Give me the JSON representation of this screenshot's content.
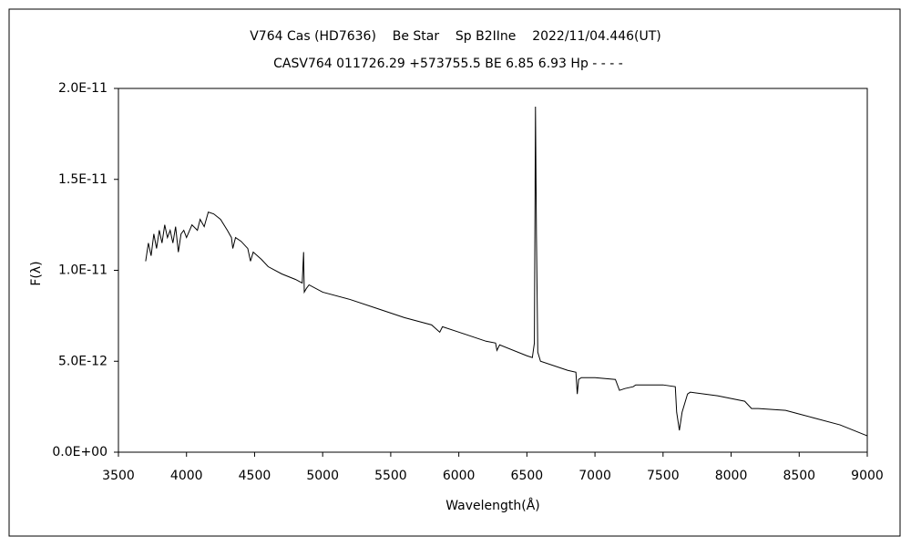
{
  "chart_data": {
    "type": "line",
    "title": "V764 Cas (HD7636)    Be Star    Sp B2IIne    2022/11/04.446(UT)",
    "subtitle": "CASV764 011726.29 +573755.5 BE 6.85 6.93 Hp - - - -",
    "x_label": "Wavelength(Å)",
    "y_label": "F(λ)",
    "color": "#000000",
    "x": [
      3700,
      3720,
      3740,
      3760,
      3780,
      3800,
      3820,
      3840,
      3860,
      3880,
      3900,
      3920,
      3940,
      3960,
      3980,
      4000,
      4040,
      4080,
      4100,
      4130,
      4160,
      4200,
      4250,
      4300,
      4330,
      4340,
      4360,
      4400,
      4450,
      4470,
      4490,
      4550,
      4600,
      4700,
      4800,
      4850,
      4860,
      4865,
      4880,
      4900,
      5000,
      5200,
      5400,
      5600,
      5800,
      5860,
      5880,
      6000,
      6200,
      6270,
      6280,
      6300,
      6500,
      6540,
      6555,
      6563,
      6570,
      6580,
      6600,
      6800,
      6860,
      6870,
      6880,
      6900,
      7000,
      7150,
      7180,
      7220,
      7280,
      7300,
      7500,
      7590,
      7600,
      7620,
      7640,
      7680,
      7700,
      7900,
      8100,
      8150,
      8200,
      8400,
      8500,
      8600,
      8800,
      9000
    ],
    "values": [
      1.05e-11,
      1.15e-11,
      1.08e-11,
      1.2e-11,
      1.12e-11,
      1.22e-11,
      1.15e-11,
      1.25e-11,
      1.18e-11,
      1.22e-11,
      1.15e-11,
      1.24e-11,
      1.1e-11,
      1.2e-11,
      1.22e-11,
      1.18e-11,
      1.25e-11,
      1.22e-11,
      1.28e-11,
      1.24e-11,
      1.32e-11,
      1.31e-11,
      1.28e-11,
      1.22e-11,
      1.18e-11,
      1.12e-11,
      1.18e-11,
      1.16e-11,
      1.12e-11,
      1.05e-11,
      1.1e-11,
      1.06e-11,
      1.02e-11,
      9.8e-12,
      9.5e-12,
      9.3e-12,
      1.1e-11,
      8.8e-12,
      9e-12,
      9.2e-12,
      8.8e-12,
      8.4e-12,
      7.9e-12,
      7.4e-12,
      7e-12,
      6.6e-12,
      6.9e-12,
      6.6e-12,
      6.1e-12,
      6e-12,
      5.6e-12,
      5.9e-12,
      5.3e-12,
      5.2e-12,
      6e-12,
      1.9e-11,
      1.2e-11,
      5.5e-12,
      5e-12,
      4.5e-12,
      4.4e-12,
      3.2e-12,
      4e-12,
      4.1e-12,
      4.1e-12,
      4e-12,
      3.4e-12,
      3.5e-12,
      3.6e-12,
      3.7e-12,
      3.7e-12,
      3.6e-12,
      2.2e-12,
      1.2e-12,
      2.2e-12,
      3.2e-12,
      3.3e-12,
      3.1e-12,
      2.8e-12,
      2.4e-12,
      2.4e-12,
      2.3e-12,
      2.1e-12,
      1.9e-12,
      1.5e-12,
      9e-13
    ],
    "xlim": [
      3500,
      9000
    ],
    "xticks": [
      3500,
      4000,
      4500,
      5000,
      5500,
      6000,
      6500,
      7000,
      7500,
      8000,
      8500,
      9000
    ],
    "ylim": [
      0,
      2e-11
    ],
    "yticks": [
      {
        "value": 0,
        "label": "0.0E+00"
      },
      {
        "value": 5e-12,
        "label": "5.0E-12"
      },
      {
        "value": 1e-11,
        "label": "1.0E-11"
      },
      {
        "value": 1.5e-11,
        "label": "1.5E-11"
      },
      {
        "value": 2e-11,
        "label": "2.0E-11"
      }
    ]
  }
}
